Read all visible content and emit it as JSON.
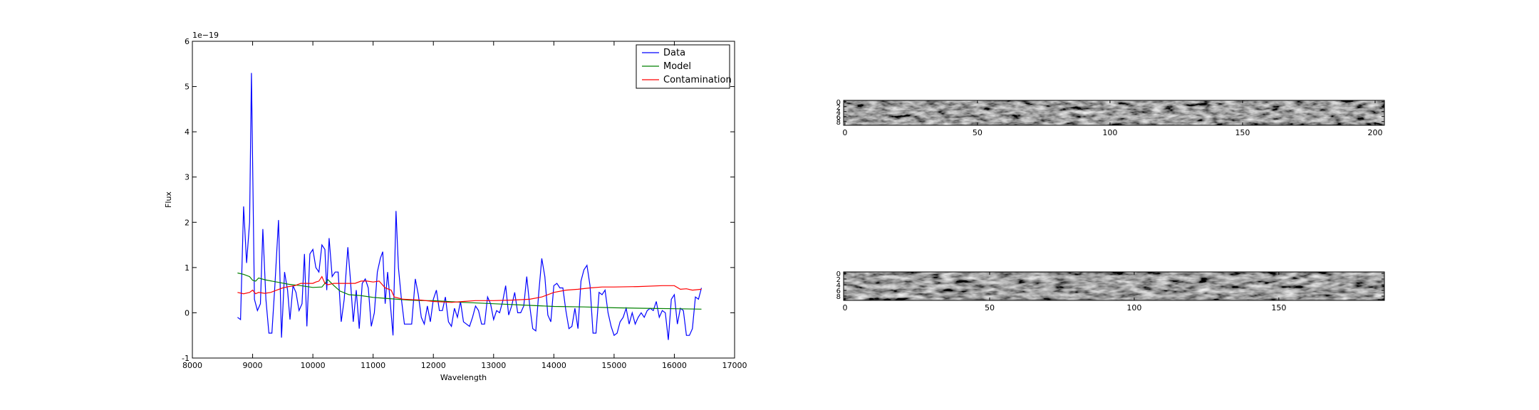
{
  "chart_data": [
    {
      "type": "line",
      "xlabel": "Wavelength",
      "ylabel": "Flux",
      "offset_text": "1e−19",
      "xlim": [
        8000,
        17000
      ],
      "xticks": [
        8000,
        9000,
        10000,
        11000,
        12000,
        13000,
        14000,
        15000,
        16000,
        17000
      ],
      "ylim": [
        -1,
        6
      ],
      "yticks": [
        -1,
        0,
        1,
        2,
        3,
        4,
        5,
        6
      ],
      "legend": "upper right",
      "series": [
        {
          "name": "Data",
          "color": "#0000ff",
          "x": [
            8750,
            8800,
            8850,
            8900,
            8950,
            8980,
            9030,
            9080,
            9130,
            9170,
            9220,
            9270,
            9320,
            9370,
            9430,
            9480,
            9530,
            9580,
            9620,
            9670,
            9720,
            9770,
            9820,
            9860,
            9900,
            9950,
            10000,
            10050,
            10100,
            10150,
            10200,
            10230,
            10270,
            10320,
            10370,
            10420,
            10470,
            10520,
            10580,
            10620,
            10670,
            10720,
            10770,
            10820,
            10870,
            10920,
            10970,
            11020,
            11070,
            11120,
            11160,
            11200,
            11240,
            11280,
            11330,
            11380,
            11420,
            11470,
            11520,
            11580,
            11640,
            11700,
            11750,
            11800,
            11850,
            11900,
            11950,
            12000,
            12050,
            12100,
            12150,
            12200,
            12250,
            12300,
            12350,
            12400,
            12450,
            12500,
            12550,
            12600,
            12650,
            12700,
            12750,
            12800,
            12850,
            12900,
            12950,
            13000,
            13050,
            13100,
            13150,
            13200,
            13250,
            13300,
            13350,
            13400,
            13450,
            13500,
            13550,
            13600,
            13650,
            13700,
            13750,
            13800,
            13850,
            13900,
            13950,
            14000,
            14050,
            14100,
            14150,
            14200,
            14250,
            14300,
            14350,
            14400,
            14450,
            14500,
            14550,
            14600,
            14650,
            14700,
            14750,
            14800,
            14850,
            14900,
            14950,
            15000,
            15050,
            15100,
            15150,
            15200,
            15250,
            15300,
            15350,
            15400,
            15450,
            15500,
            15550,
            15600,
            15650,
            15700,
            15750,
            15800,
            15850,
            15900,
            15950,
            16000,
            16050,
            16100,
            16150,
            16200,
            16250,
            16300,
            16350,
            16400,
            16450
          ],
          "values": [
            -0.1,
            -0.15,
            2.35,
            1.1,
            2.0,
            5.3,
            0.3,
            0.05,
            0.2,
            1.85,
            0.3,
            -0.45,
            -0.45,
            0.6,
            2.05,
            -0.55,
            0.9,
            0.5,
            -0.15,
            0.6,
            0.45,
            0.05,
            0.2,
            1.3,
            -0.3,
            1.3,
            1.4,
            1.0,
            0.9,
            1.5,
            1.4,
            0.5,
            1.65,
            0.8,
            0.9,
            0.9,
            -0.2,
            0.3,
            1.45,
            0.8,
            -0.2,
            0.5,
            -0.35,
            0.65,
            0.75,
            0.55,
            -0.3,
            0.0,
            0.9,
            1.2,
            1.35,
            0.2,
            0.9,
            0.3,
            -0.5,
            2.25,
            1.0,
            0.3,
            -0.25,
            -0.25,
            -0.25,
            0.75,
            0.4,
            -0.1,
            -0.25,
            0.15,
            -0.2,
            0.3,
            0.5,
            0.05,
            0.05,
            0.35,
            -0.2,
            -0.3,
            0.1,
            -0.1,
            0.25,
            -0.2,
            -0.25,
            -0.3,
            -0.1,
            0.15,
            0.05,
            -0.25,
            -0.25,
            0.35,
            0.2,
            -0.15,
            0.05,
            0.0,
            0.25,
            0.6,
            -0.05,
            0.15,
            0.45,
            0.0,
            0.0,
            0.15,
            0.8,
            0.15,
            -0.35,
            -0.4,
            0.45,
            1.2,
            0.8,
            -0.05,
            -0.2,
            0.6,
            0.65,
            0.55,
            0.55,
            0.05,
            -0.35,
            -0.3,
            0.1,
            -0.35,
            0.7,
            0.95,
            1.05,
            0.6,
            -0.45,
            -0.45,
            0.45,
            0.4,
            0.5,
            0.0,
            -0.3,
            -0.5,
            -0.45,
            -0.2,
            -0.1,
            0.1,
            -0.25,
            0.0,
            -0.25,
            -0.1,
            0.0,
            -0.1,
            0.05,
            0.1,
            0.05,
            0.25,
            -0.1,
            0.05,
            0.0,
            -0.6,
            0.3,
            0.4,
            -0.25,
            0.1,
            0.05,
            -0.5,
            -0.5,
            -0.35,
            0.35,
            0.3,
            0.55
          ]
        },
        {
          "name": "Model",
          "color": "#008000",
          "x": [
            8750,
            8850,
            8950,
            9000,
            9050,
            9100,
            9200,
            9400,
            9600,
            9800,
            10000,
            10150,
            10250,
            10350,
            10450,
            10600,
            10800,
            11000,
            11200,
            11400,
            11600,
            11800,
            12000,
            12500,
            13000,
            13500,
            14000,
            14500,
            15000,
            15500,
            16000,
            16450
          ],
          "values": [
            0.88,
            0.85,
            0.8,
            0.72,
            0.7,
            0.77,
            0.73,
            0.68,
            0.63,
            0.6,
            0.56,
            0.57,
            0.73,
            0.6,
            0.48,
            0.4,
            0.38,
            0.34,
            0.32,
            0.3,
            0.28,
            0.27,
            0.27,
            0.23,
            0.2,
            0.17,
            0.14,
            0.13,
            0.11,
            0.1,
            0.09,
            0.08
          ]
        },
        {
          "name": "Contamination",
          "color": "#ff0000",
          "x": [
            8750,
            8850,
            8950,
            9000,
            9050,
            9100,
            9200,
            9300,
            9400,
            9500,
            9600,
            9700,
            9800,
            9900,
            10000,
            10050,
            10100,
            10150,
            10200,
            10250,
            10350,
            10500,
            10700,
            10800,
            10900,
            11000,
            11100,
            11200,
            11300,
            11350,
            11500,
            11800,
            12000,
            12300,
            12500,
            12700,
            13000,
            13300,
            13600,
            13800,
            14000,
            14200,
            14400,
            14600,
            14800,
            15000,
            15400,
            15800,
            16000,
            16100,
            16200,
            16300,
            16450
          ],
          "values": [
            0.45,
            0.42,
            0.45,
            0.5,
            0.42,
            0.45,
            0.43,
            0.45,
            0.5,
            0.55,
            0.58,
            0.6,
            0.65,
            0.65,
            0.65,
            0.68,
            0.7,
            0.8,
            0.65,
            0.62,
            0.65,
            0.65,
            0.65,
            0.7,
            0.7,
            0.68,
            0.7,
            0.55,
            0.5,
            0.35,
            0.3,
            0.28,
            0.25,
            0.23,
            0.25,
            0.27,
            0.27,
            0.28,
            0.3,
            0.35,
            0.45,
            0.5,
            0.52,
            0.55,
            0.57,
            0.57,
            0.58,
            0.6,
            0.6,
            0.52,
            0.53,
            0.5,
            0.52
          ]
        }
      ]
    },
    {
      "type": "image",
      "xlim": [
        -0.5,
        203.5
      ],
      "xticks": [
        0,
        50,
        100,
        150,
        200
      ],
      "ylim": [
        9.5,
        -0.5
      ],
      "yticks": [
        0,
        2,
        4,
        6,
        8
      ]
    },
    {
      "type": "image",
      "xlim": [
        -0.5,
        186.5
      ],
      "xticks": [
        0,
        50,
        100,
        150
      ],
      "ylim": [
        9.5,
        -0.5
      ],
      "yticks": [
        0,
        2,
        4,
        6,
        8
      ]
    }
  ]
}
